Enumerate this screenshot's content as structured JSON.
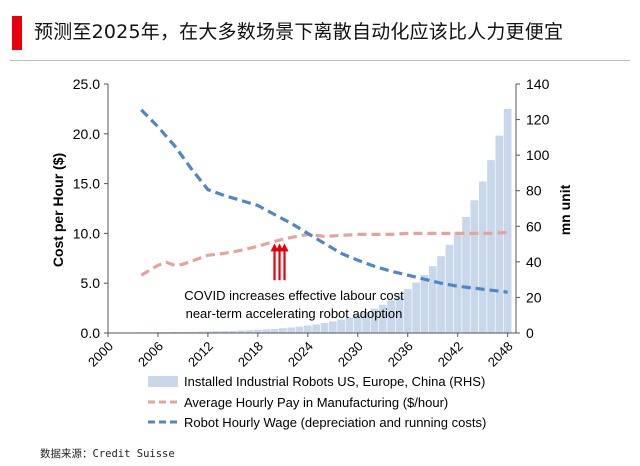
{
  "page_title": "预测至2025年，在大多数场景下离散自动化应该比人力更便宜",
  "source_note": "数据来源：Credit Suisse",
  "colors": {
    "accent_red": "#e8000d",
    "bars": "#c9d7ea",
    "pay_line": "#e4a49c",
    "wage_line": "#4f86c6",
    "arrow": "#e8000d"
  },
  "chart_data": {
    "type": "bar",
    "title": "",
    "ylabel_left": "Cost per Hour ($)",
    "ylabel_right": "mn unit",
    "ylim_left": [
      0,
      25
    ],
    "ylim_right": [
      0,
      140
    ],
    "left_ticks": [
      "0.0",
      "5.0",
      "10.0",
      "15.0",
      "20.0",
      "25.0"
    ],
    "right_ticks": [
      "0",
      "20",
      "40",
      "60",
      "80",
      "100",
      "120",
      "140"
    ],
    "xlim": [
      2000,
      2049
    ],
    "x_tick_labels": [
      "2000",
      "2006",
      "2012",
      "2018",
      "2024",
      "2030",
      "2036",
      "2042",
      "2048"
    ],
    "grid": false,
    "legend_position": "bottom",
    "series": [
      {
        "name": "Installed Industrial Robots US, Europe, China (RHS)",
        "type": "bar",
        "axis": "right",
        "x": [
          2002,
          2003,
          2004,
          2005,
          2006,
          2007,
          2008,
          2009,
          2010,
          2011,
          2012,
          2013,
          2014,
          2015,
          2016,
          2017,
          2018,
          2019,
          2020,
          2021,
          2022,
          2023,
          2024,
          2025,
          2026,
          2027,
          2028,
          2029,
          2030,
          2031,
          2032,
          2033,
          2034,
          2035,
          2036,
          2037,
          2038,
          2039,
          2040,
          2041,
          2042,
          2043,
          2044,
          2045,
          2046,
          2047,
          2048
        ],
        "values": [
          0.3,
          0.3,
          0.4,
          0.4,
          0.5,
          0.5,
          0.6,
          0.6,
          0.7,
          0.8,
          0.9,
          1.0,
          1.1,
          1.2,
          1.4,
          1.6,
          1.8,
          2.0,
          2.3,
          2.7,
          3.1,
          3.6,
          4.2,
          4.8,
          5.6,
          6.5,
          7.6,
          8.8,
          10.2,
          11.8,
          13.7,
          15.9,
          18.4,
          21.3,
          24.6,
          28.4,
          32.7,
          37.6,
          43.2,
          49.6,
          56.9,
          65.2,
          74.6,
          85.2,
          97.2,
          111,
          126
        ]
      },
      {
        "name": "Average Hourly Pay in Manufacturing ($/hour)",
        "type": "line",
        "style": "dashed",
        "axis": "left",
        "x": [
          2004,
          2006,
          2007,
          2008,
          2009,
          2010,
          2012,
          2014,
          2016,
          2018,
          2020,
          2022,
          2024,
          2026,
          2028,
          2030,
          2032,
          2034,
          2036,
          2038,
          2040,
          2042,
          2044,
          2046,
          2048
        ],
        "values": [
          5.8,
          6.8,
          7.1,
          6.8,
          6.9,
          7.2,
          7.8,
          8.0,
          8.3,
          8.7,
          9.2,
          9.6,
          9.9,
          9.7,
          9.8,
          9.9,
          9.9,
          9.9,
          10.0,
          10.0,
          10.0,
          10.0,
          10.0,
          10.0,
          10.1
        ]
      },
      {
        "name": "Robot Hourly Wage (depreciation and running costs)",
        "type": "line",
        "style": "dashed",
        "axis": "left",
        "x": [
          2004,
          2006,
          2008,
          2010,
          2012,
          2014,
          2016,
          2018,
          2020,
          2022,
          2024,
          2026,
          2028,
          2030,
          2032,
          2034,
          2036,
          2038,
          2040,
          2042,
          2044,
          2046,
          2048
        ],
        "values": [
          22.4,
          20.7,
          18.8,
          16.5,
          14.4,
          13.8,
          13.3,
          12.8,
          11.9,
          11.0,
          10.0,
          9.0,
          8.0,
          7.3,
          6.7,
          6.2,
          5.8,
          5.4,
          5.0,
          4.7,
          4.5,
          4.3,
          4.1
        ]
      }
    ],
    "annotations": [
      {
        "text": "COVID increases  effective labour cost",
        "line": 1
      },
      {
        "text": "near-term accelerating  robot adoption",
        "line": 2
      }
    ],
    "arrows_at_x": [
      2020,
      2020.6,
      2021.2
    ]
  }
}
